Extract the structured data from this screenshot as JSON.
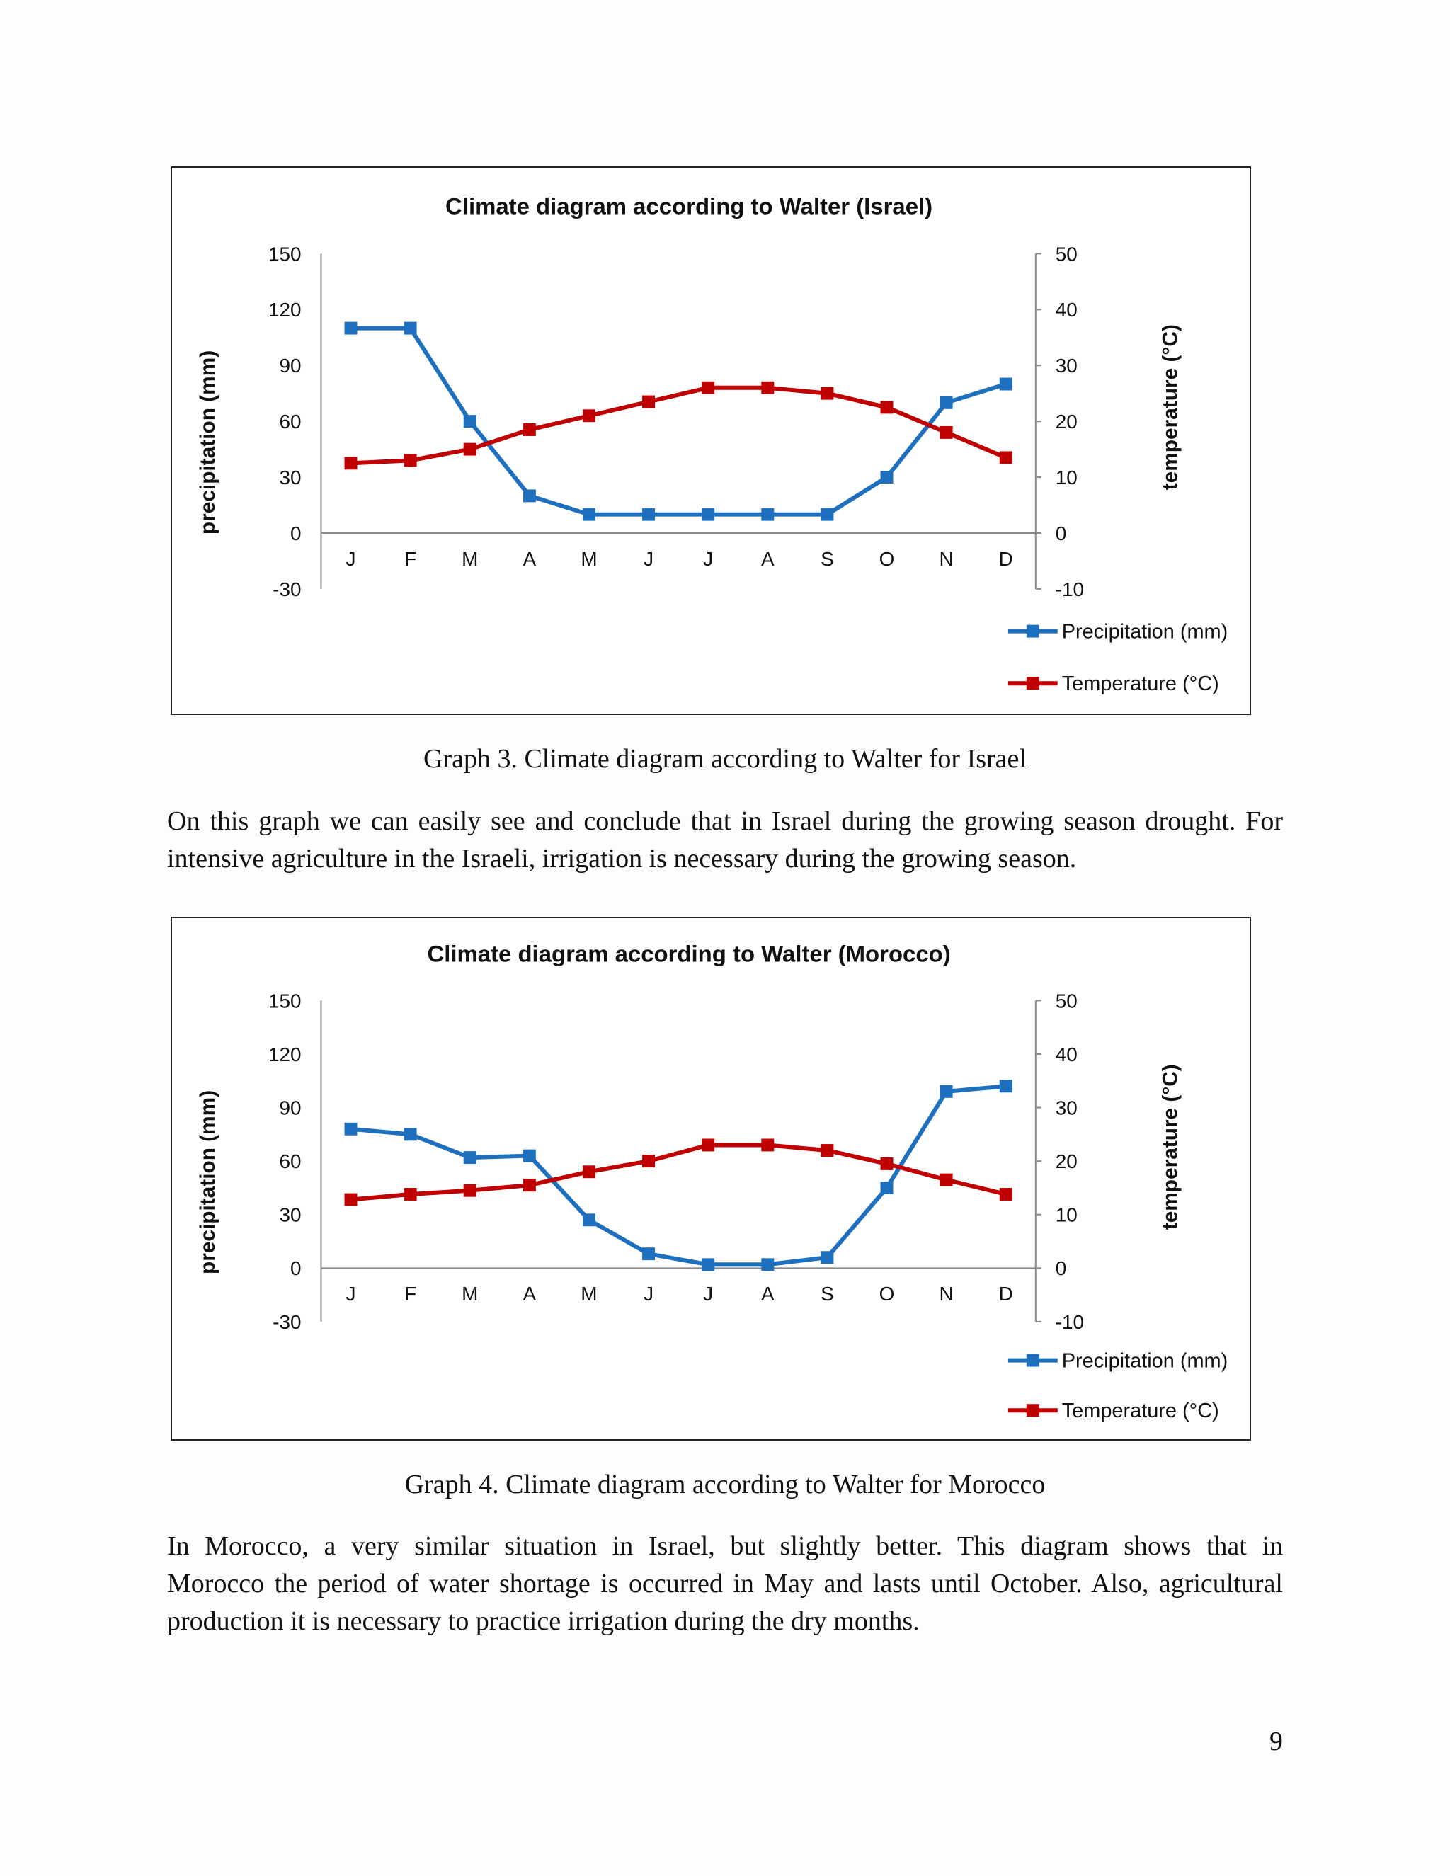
{
  "chart_data": [
    {
      "type": "line",
      "title": "Climate diagram according to Walter (Israel)",
      "categories": [
        "J",
        "F",
        "M",
        "A",
        "M",
        "J",
        "J",
        "A",
        "S",
        "O",
        "N",
        "D"
      ],
      "y_left_label": "precipitation (mm)",
      "y_right_label": "temperature (°C)",
      "y_left_range": [
        -30,
        150
      ],
      "y_left_ticks": [
        150,
        120,
        90,
        60,
        30,
        0,
        -30
      ],
      "y_right_range": [
        -10,
        50
      ],
      "y_right_ticks": [
        50,
        40,
        30,
        20,
        10,
        0,
        -10
      ],
      "legend_placement": "bottom-right",
      "grid": false,
      "series": [
        {
          "name": "Precipitation (mm)",
          "axis": "left",
          "color": "#1f6fbf",
          "values": [
            110,
            110,
            60,
            20,
            10,
            10,
            10,
            10,
            10,
            30,
            70,
            80
          ]
        },
        {
          "name": "Temperature (°C)",
          "axis": "right",
          "color": "#c00000",
          "values": [
            12.5,
            13,
            15,
            18.5,
            21,
            23.5,
            26,
            26,
            25,
            22.5,
            18,
            13.5
          ]
        }
      ]
    },
    {
      "type": "line",
      "title": "Climate diagram according to Walter (Morocco)",
      "categories": [
        "J",
        "F",
        "M",
        "A",
        "M",
        "J",
        "J",
        "A",
        "S",
        "O",
        "N",
        "D"
      ],
      "y_left_label": "precipitation (mm)",
      "y_right_label": "temperature (°C)",
      "y_left_range": [
        -30,
        150
      ],
      "y_left_ticks": [
        150,
        120,
        90,
        60,
        30,
        0,
        -30
      ],
      "y_right_range": [
        -10,
        50
      ],
      "y_right_ticks": [
        50,
        40,
        30,
        20,
        10,
        0,
        -10
      ],
      "legend_placement": "bottom-right",
      "grid": false,
      "series": [
        {
          "name": "Precipitation (mm)",
          "axis": "left",
          "color": "#1f6fbf",
          "values": [
            78,
            75,
            62,
            63,
            27,
            8,
            2,
            2,
            6,
            45,
            99,
            102
          ]
        },
        {
          "name": "Temperature (°C)",
          "axis": "right",
          "color": "#c00000",
          "values": [
            12.8,
            13.8,
            14.5,
            15.5,
            18,
            20,
            23,
            23,
            22,
            19.5,
            16.5,
            13.8
          ]
        }
      ]
    }
  ],
  "captions": {
    "graph3": "Graph 3. Climate diagram according to Walter for Israel",
    "graph4": "Graph 4. Climate diagram according to Walter for Morocco"
  },
  "paragraph1": {
    "line1": "On this graph we can easily see and conclude that in Israel during the growing season drought. For",
    "line2": "intensive agriculture in the Israeli, irrigation is necessary during the growing season."
  },
  "paragraph2": {
    "line1": "In Morocco, a very similar situation in Israel, but slightly better. This diagram shows that in",
    "line2": "Morocco the period of water shortage is occurred in May and lasts until October. Also, agricultural",
    "line3": "production it is necessary to practice irrigation during the dry months."
  },
  "page_number": "9"
}
